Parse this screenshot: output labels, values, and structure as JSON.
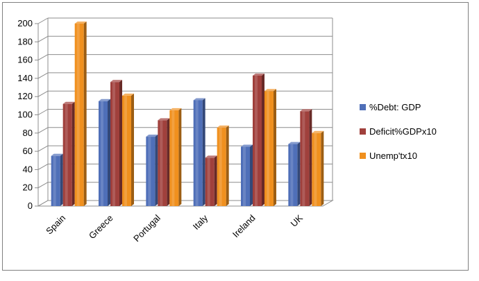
{
  "chart_data": {
    "type": "bar",
    "title": "",
    "xlabel": "",
    "ylabel": "",
    "ylim": [
      0,
      200
    ],
    "yticks": [
      0,
      20,
      40,
      60,
      80,
      100,
      120,
      140,
      160,
      180,
      200
    ],
    "grid": true,
    "legend_position": "right",
    "categories": [
      "Spain",
      "Greece",
      "Portugal",
      "Italy",
      "Ireland",
      "UK"
    ],
    "series": [
      {
        "name": "%Debt: GDP",
        "color": "#4f6fb8",
        "values": [
          55,
          115,
          76,
          116,
          65,
          68
        ]
      },
      {
        "name": "Deficit%GDPx10",
        "color": "#a0403c",
        "values": [
          112,
          136,
          94,
          53,
          143,
          104
        ]
      },
      {
        "name": "Unemp'tx10",
        "color": "#f0901e",
        "values": [
          200,
          121,
          105,
          86,
          126,
          80
        ]
      }
    ]
  }
}
